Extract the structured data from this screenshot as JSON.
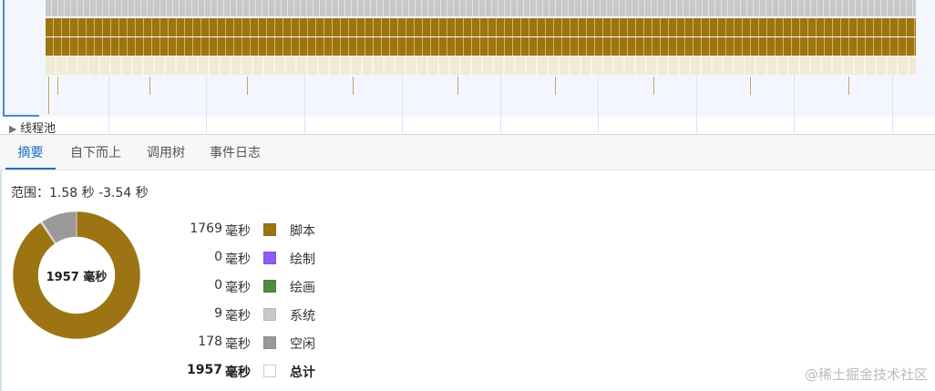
{
  "timeline": {
    "track_label": "线程池"
  },
  "tabs": [
    {
      "label": "摘要",
      "active": true
    },
    {
      "label": "自下而上"
    },
    {
      "label": "调用树"
    },
    {
      "label": "事件日志"
    }
  ],
  "summary": {
    "range_label": "范围：1.58 秒 -3.54 秒",
    "total_center": "1957  毫秒",
    "unit": "毫秒",
    "items": [
      {
        "value": "1769",
        "name": "脚本",
        "color": "#9c7413"
      },
      {
        "value": "0",
        "name": "绘制",
        "color": "#8b5cf6"
      },
      {
        "value": "0",
        "name": "绘画",
        "color": "#4f8a43"
      },
      {
        "value": "9",
        "name": "系统",
        "color": "#c8c8c8"
      },
      {
        "value": "178",
        "name": "空闲",
        "color": "#999999"
      },
      {
        "value": "1957",
        "name": "总计",
        "color": "#ffffff",
        "total": true
      }
    ]
  },
  "watermark": "@稀土掘金技术社区"
}
